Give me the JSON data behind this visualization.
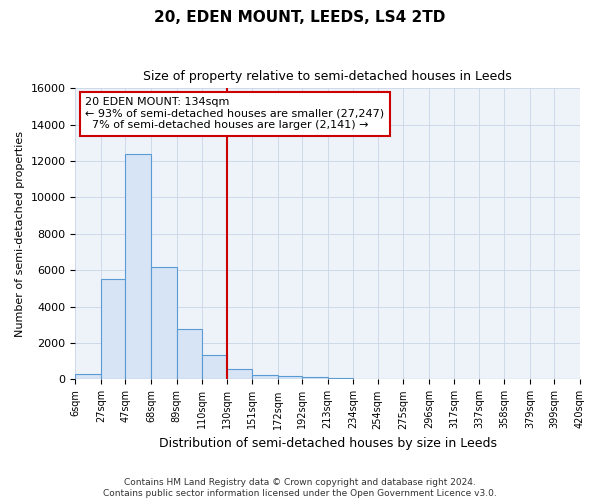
{
  "title": "20, EDEN MOUNT, LEEDS, LS4 2TD",
  "subtitle": "Size of property relative to semi-detached houses in Leeds",
  "xlabel": "Distribution of semi-detached houses by size in Leeds",
  "ylabel": "Number of semi-detached properties",
  "footnote": "Contains HM Land Registry data © Crown copyright and database right 2024.\nContains public sector information licensed under the Open Government Licence v3.0.",
  "bin_labels": [
    "6sqm",
    "27sqm",
    "47sqm",
    "68sqm",
    "89sqm",
    "110sqm",
    "130sqm",
    "151sqm",
    "172sqm",
    "192sqm",
    "213sqm",
    "234sqm",
    "254sqm",
    "275sqm",
    "296sqm",
    "317sqm",
    "337sqm",
    "358sqm",
    "379sqm",
    "399sqm",
    "420sqm"
  ],
  "bar_values": [
    300,
    5500,
    12400,
    6200,
    2800,
    1350,
    600,
    250,
    200,
    130,
    100,
    0,
    0,
    0,
    0,
    0,
    0,
    0,
    0,
    0
  ],
  "bar_color": "#d6e4f5",
  "bar_edge_color": "#5b9bd5",
  "property_label": "20 EDEN MOUNT: 134sqm",
  "pct_smaller": 93,
  "count_smaller": 27247,
  "pct_larger": 7,
  "count_larger": 2141,
  "vline_color": "#cc0000",
  "annotation_box_color": "#cc0000",
  "ylim": [
    0,
    16000
  ],
  "yticks": [
    0,
    2000,
    4000,
    6000,
    8000,
    10000,
    12000,
    14000,
    16000
  ],
  "bin_edges": [
    6,
    27,
    47,
    68,
    89,
    110,
    130,
    151,
    172,
    192,
    213,
    234,
    254,
    275,
    296,
    317,
    337,
    358,
    379,
    399,
    420
  ],
  "vline_x": 130,
  "plot_bg_color": "#eef3fa",
  "grid_color": "#c8d4e8"
}
